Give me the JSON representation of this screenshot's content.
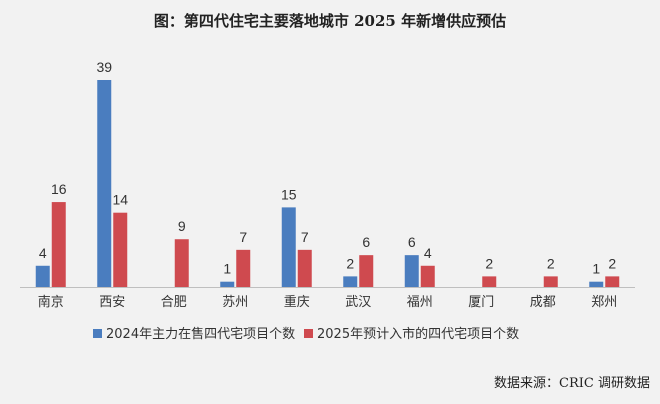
{
  "title": "图：第四代住宅主要落地城市 2025 年新增供应预估",
  "source": "数据来源：CRIC 调研数据",
  "colors": {
    "series1": "#4a7dbf",
    "series2": "#cf4a4f",
    "axis": "#bfbfbf",
    "text": "#333333"
  },
  "chart_data": {
    "type": "bar",
    "title": "图：第四代住宅主要落地城市 2025 年新增供应预估",
    "xlabel": "",
    "ylabel": "",
    "ylim": [
      0,
      39
    ],
    "grid": false,
    "legend_position": "bottom",
    "categories": [
      "南京",
      "西安",
      "合肥",
      "苏州",
      "重庆",
      "武汉",
      "福州",
      "厦门",
      "成都",
      "郑州"
    ],
    "series": [
      {
        "name": "2024年主力在售四代宅项目个数",
        "values": [
          4,
          39,
          null,
          1,
          15,
          2,
          6,
          null,
          null,
          1
        ]
      },
      {
        "name": "2025年预计入市的四代宅项目个数",
        "values": [
          16,
          14,
          9,
          7,
          7,
          6,
          4,
          2,
          2,
          2
        ]
      }
    ]
  }
}
